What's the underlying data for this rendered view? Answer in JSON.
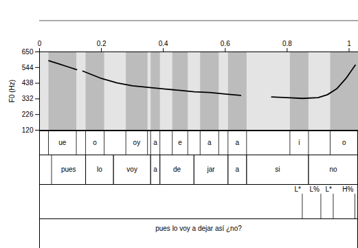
{
  "chart_data": {
    "type": "line",
    "y_label": "F0 (Hz)",
    "color": "#000000",
    "xlim": [
      0,
      1.03
    ],
    "xticks": [
      0,
      0.2,
      0.4,
      0.6,
      0.8,
      1
    ],
    "ylim": [
      120,
      650
    ],
    "yticks": [
      120,
      226,
      332,
      438,
      544,
      650
    ],
    "x": [
      0.03,
      0.06,
      0.09,
      0.12,
      0.13,
      0.14,
      0.2,
      0.25,
      0.3,
      0.35,
      0.4,
      0.45,
      0.5,
      0.55,
      0.6,
      0.65,
      0.7,
      0.75,
      0.8,
      0.85,
      0.9,
      0.93,
      0.96,
      0.99,
      1.02
    ],
    "values": [
      590,
      570,
      550,
      530,
      null,
      520,
      470,
      440,
      420,
      410,
      400,
      390,
      380,
      375,
      365,
      355,
      null,
      345,
      340,
      335,
      340,
      360,
      400,
      470,
      560
    ],
    "segments": [
      {
        "start": 0.03,
        "end": 0.12,
        "text": "ue"
      },
      {
        "start": 0.15,
        "end": 0.21,
        "text": "o"
      },
      {
        "start": 0.28,
        "end": 0.35,
        "text": "oy"
      },
      {
        "start": 0.36,
        "end": 0.39,
        "text": "a"
      },
      {
        "start": 0.43,
        "end": 0.48,
        "text": "e"
      },
      {
        "start": 0.52,
        "end": 0.58,
        "text": "a"
      },
      {
        "start": 0.61,
        "end": 0.67,
        "text": "a"
      },
      {
        "start": 0.81,
        "end": 0.87,
        "text": "i"
      },
      {
        "start": 0.94,
        "end": 1.03,
        "text": "o"
      }
    ],
    "words": [
      {
        "start": 0.04,
        "end": 0.15,
        "text": "pues"
      },
      {
        "start": 0.15,
        "end": 0.24,
        "text": "lo"
      },
      {
        "start": 0.24,
        "end": 0.36,
        "text": "voy"
      },
      {
        "start": 0.36,
        "end": 0.39,
        "text": "a"
      },
      {
        "start": 0.39,
        "end": 0.5,
        "text": "de"
      },
      {
        "start": 0.5,
        "end": 0.61,
        "text": "jar"
      },
      {
        "start": 0.61,
        "end": 0.67,
        "text": "a"
      },
      {
        "start": 0.67,
        "end": 0.87,
        "text": "si"
      },
      {
        "start": 0.87,
        "end": 1.03,
        "text": "no"
      }
    ],
    "tones": [
      {
        "time": 0.85,
        "text": "L*"
      },
      {
        "time": 0.91,
        "text": "L%"
      },
      {
        "time": 0.95,
        "text": "L*"
      },
      {
        "time": 1.02,
        "text": "H%"
      }
    ],
    "sentence": "pues lo voy a dejar así ¿no?"
  }
}
